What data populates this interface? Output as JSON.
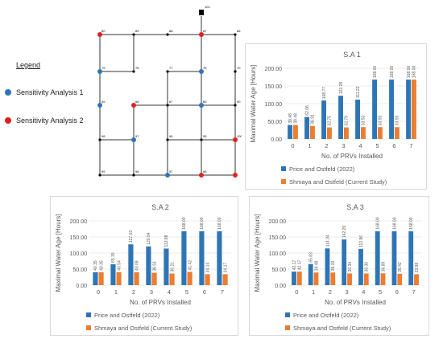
{
  "network": {
    "legend_title": "Legend",
    "legend_items": [
      {
        "label": "Sensitivity Analysis 1",
        "color": "#2E75B6"
      },
      {
        "label": "Sensitivity Analysis 2",
        "color": "#E02020"
      }
    ],
    "tank_label": "101",
    "node_labels": [
      "80",
      "89",
      "88",
      "87",
      "86",
      "79",
      "78",
      "77",
      "76",
      "70",
      "69",
      "68",
      "67",
      "66",
      "90",
      "98",
      "97",
      "96",
      "95",
      "100",
      "99",
      "98",
      "97",
      "96"
    ],
    "node_colors": {
      "normal": "#000000",
      "sa1": "#2E75B6",
      "sa2": "#E02020",
      "pipe": "#333333"
    }
  },
  "legend_labels": {
    "series1": "Price and Ostfeld (2022)",
    "series2": "Shmaya and Ostfeld (Current Study)"
  },
  "colors": {
    "series1": "#2E75B6",
    "series2": "#ED7D31",
    "grid": "#d9d9d9",
    "axis_text": "#595959"
  },
  "chart_data": [
    {
      "type": "bar",
      "title": "S.A 1",
      "xlabel": "No. of PRVs Installed",
      "ylabel": "Maximal Water Age [Hours]",
      "categories": [
        "0",
        "1",
        "2",
        "3",
        "4",
        "5",
        "6",
        "7"
      ],
      "ylim": [
        0,
        200
      ],
      "yticks": [
        "0.00",
        "50.00",
        "100.00",
        "150.00",
        "200.00"
      ],
      "series": [
        {
          "name": "Price and Ostfeld (2022)",
          "values": [
            39.48,
            62.06,
            108.77,
            122.28,
            111.22,
            168.0,
            168.0,
            168.0
          ],
          "labels": [
            "39.48",
            "62.06",
            "108.77",
            "122.28",
            "111.22",
            "168.00",
            "168.00",
            "168.00"
          ]
        },
        {
          "name": "Shmaya and Ostfeld (Current Study)",
          "values": [
            39.48,
            36.91,
            32.75,
            32.79,
            33.53,
            33.55,
            33.55,
            168.0
          ],
          "labels": [
            "39.48",
            "36.91",
            "32.75",
            "32.79",
            "33.53",
            "33.55",
            "33.55",
            "168.00"
          ]
        }
      ]
    },
    {
      "type": "bar",
      "title": "S.A 2",
      "xlabel": "No. of PRVs Installed",
      "ylabel": "Maximal Water Age [Hours]",
      "categories": [
        "0",
        "1",
        "2",
        "3",
        "4",
        "5",
        "6",
        "7"
      ],
      "ylim": [
        0,
        200
      ],
      "yticks": [
        "0.00",
        "50.00",
        "100.00",
        "150.00",
        "200.00"
      ],
      "series": [
        {
          "name": "Price and Ostfeld (2022)",
          "values": [
            40.35,
            65.15,
            127.03,
            120.54,
            113.88,
            168.0,
            168.0,
            168.0
          ],
          "labels": [
            "40.35",
            "65.15",
            "127.03",
            "120.54",
            "113.88",
            "168.00",
            "168.00",
            "168.00"
          ]
        },
        {
          "name": "Shmaya and Ostfeld (Current Study)",
          "values": [
            40.35,
            40.54,
            40.09,
            38.51,
            36.21,
            41.42,
            34.14,
            34.17
          ],
          "labels": [
            "40.35",
            "40.54",
            "40.09",
            "38.51",
            "36.21",
            "41.42",
            "34.14",
            "34.17"
          ]
        }
      ]
    },
    {
      "type": "bar",
      "title": "S.A 3",
      "xlabel": "No. of PRVs Installed",
      "ylabel": "Maximal Water Age [Hours]",
      "categories": [
        "0",
        "1",
        "2",
        "3",
        "4",
        "5",
        "6",
        "7"
      ],
      "ylim": [
        0,
        200
      ],
      "yticks": [
        "0.00",
        "50.00",
        "100.00",
        "150.00",
        "200.00"
      ],
      "series": [
        {
          "name": "Price and Ostfeld (2022)",
          "values": [
            42.17,
            65.83,
            114.34,
            142.29,
            112.86,
            168.0,
            168.0,
            168.0
          ],
          "labels": [
            "42.17",
            "65.83",
            "114.34",
            "142.29",
            "112.86",
            "168.00",
            "168.00",
            "168.00"
          ]
        },
        {
          "name": "Shmaya and Ostfeld (Current Study)",
          "values": [
            42.17,
            39.48,
            39.33,
            36.34,
            36.36,
            36.89,
            35.42,
            33.98
          ],
          "labels": [
            "42.17",
            "39.48",
            "39.33",
            "36.34",
            "36.36",
            "36.89",
            "35.42",
            "33.98"
          ]
        }
      ]
    }
  ]
}
